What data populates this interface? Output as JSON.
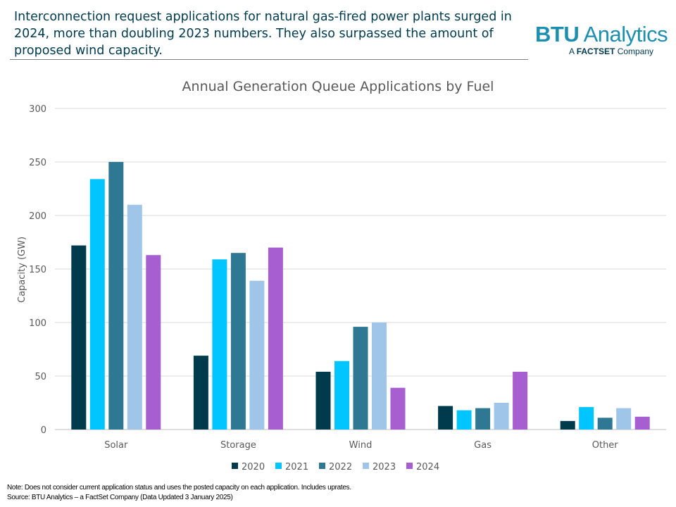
{
  "headline": "Interconnection request applications for natural gas-fired power plants surged in 2024, more than doubling 2023 numbers. They also surpassed the amount of proposed wind capacity.",
  "logo": {
    "brand_bold": "BTU",
    "brand_rest": " Analytics",
    "tagline_prefix": "A ",
    "tagline_bold": "FACTSET",
    "tagline_suffix": " Company"
  },
  "notes": {
    "note": "Note: Does not consider current application status and uses the posted capacity on each application. Includes uprates.",
    "source": "Source: BTU Analytics – a FactSet Company (Data Updated 3 January 2025)"
  },
  "chart_data": {
    "type": "bar",
    "title": "Annual Generation Queue Applications by Fuel",
    "xlabel": "",
    "ylabel": "Capacity (GW)",
    "ylim": [
      0,
      300
    ],
    "yticks": [
      0,
      50,
      100,
      150,
      200,
      250,
      300
    ],
    "grid": true,
    "legend_position": "bottom",
    "categories": [
      "Solar",
      "Storage",
      "Wind",
      "Gas",
      "Other"
    ],
    "series": [
      {
        "name": "2020",
        "color": "#003a4d",
        "values": [
          172,
          69,
          54,
          22,
          8
        ]
      },
      {
        "name": "2021",
        "color": "#00c5ff",
        "values": [
          234,
          159,
          64,
          18,
          21
        ]
      },
      {
        "name": "2022",
        "color": "#2f7893",
        "values": [
          250,
          165,
          96,
          20,
          11
        ]
      },
      {
        "name": "2023",
        "color": "#9fc5e8",
        "values": [
          210,
          139,
          100,
          25,
          20
        ]
      },
      {
        "name": "2024",
        "color": "#a65ed0",
        "values": [
          163,
          170,
          39,
          54,
          12
        ]
      }
    ]
  }
}
